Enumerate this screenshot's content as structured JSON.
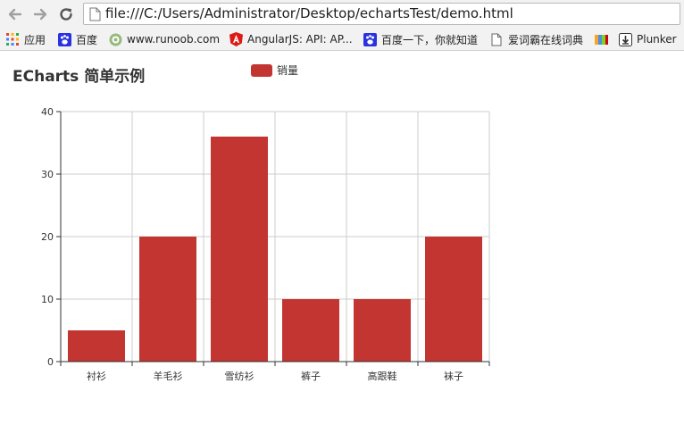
{
  "browser": {
    "address": "file:///C:/Users/Administrator/Desktop/echartsTest/demo.html",
    "bookmarks": [
      {
        "label": "应用",
        "icon": "apps-grid-icon"
      },
      {
        "label": "百度",
        "icon": "baidu-paw-icon"
      },
      {
        "label": "www.runoob.com",
        "icon": "runoob-icon"
      },
      {
        "label": "AngularJS: API: AP...",
        "icon": "angular-icon"
      },
      {
        "label": "百度一下，你就知道",
        "icon": "baidu-paw-icon"
      },
      {
        "label": "爱词霸在线词典",
        "icon": "page-icon"
      },
      {
        "label": "",
        "icon": "colorful-app-icon"
      },
      {
        "label": "Plunker",
        "icon": "plunker-icon"
      }
    ]
  },
  "page": {
    "title": "ECharts 简单示例"
  },
  "colors": {
    "bar": "#c23531",
    "axis": "#333333",
    "grid": "#cccccc"
  },
  "chart_data": {
    "type": "bar",
    "title": "ECharts 简单示例",
    "categories": [
      "衬衫",
      "羊毛衫",
      "雪纺衫",
      "裤子",
      "高跟鞋",
      "袜子"
    ],
    "series": [
      {
        "name": "销量",
        "values": [
          5,
          20,
          36,
          10,
          10,
          20
        ]
      }
    ],
    "ylim": [
      0,
      40
    ],
    "yticks": [
      0,
      10,
      20,
      30,
      40
    ],
    "xlabel": "",
    "ylabel": "",
    "grid": true,
    "legend_position": "top"
  }
}
